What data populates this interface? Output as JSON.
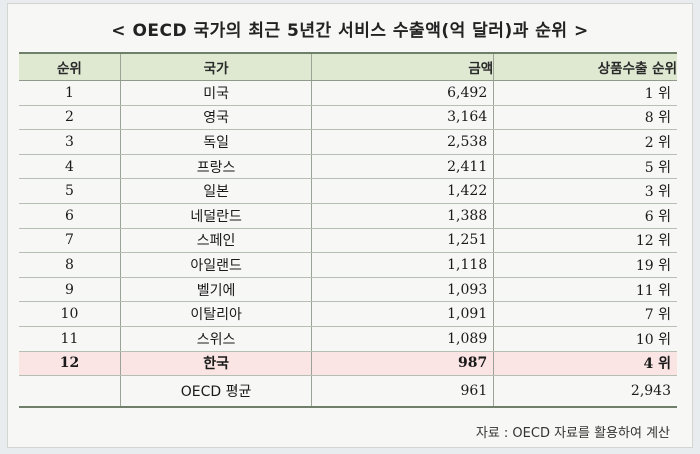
{
  "title": "< OECD 국가의 최근 5년간 서비스 수출액(억 달러)과 순위 >",
  "headers": [
    "순위",
    "국가",
    "금액",
    "상품수출 순위"
  ],
  "rows": [
    {
      "rank": "1",
      "country": "미국",
      "amount": "6,492",
      "goods_rank": "1 위"
    },
    {
      "rank": "2",
      "country": "영국",
      "amount": "3,164",
      "goods_rank": "8 위"
    },
    {
      "rank": "3",
      "country": "독일",
      "amount": "2,538",
      "goods_rank": "2 위"
    },
    {
      "rank": "4",
      "country": "프랑스",
      "amount": "2,411",
      "goods_rank": "5 위"
    },
    {
      "rank": "5",
      "country": "일본",
      "amount": "1,422",
      "goods_rank": "3 위"
    },
    {
      "rank": "6",
      "country": "네덜란드",
      "amount": "1,388",
      "goods_rank": "6 위"
    },
    {
      "rank": "7",
      "country": "스페인",
      "amount": "1,251",
      "goods_rank": "12 위"
    },
    {
      "rank": "8",
      "country": "아일랜드",
      "amount": "1,118",
      "goods_rank": "19 위"
    },
    {
      "rank": "9",
      "country": "벨기에",
      "amount": "1,093",
      "goods_rank": "11 위"
    },
    {
      "rank": "10",
      "country": "이탈리아",
      "amount": "1,091",
      "goods_rank": "7 위"
    },
    {
      "rank": "11",
      "country": "스위스",
      "amount": "1,089",
      "goods_rank": "10 위"
    },
    {
      "rank": "12",
      "country": "한국",
      "amount": "987",
      "goods_rank": "4 위"
    }
  ],
  "average_row": {
    "rank": "",
    "country": "OECD 평균",
    "amount": "961",
    "goods_rank": "2,943"
  },
  "source": "자료 : OECD 자료를 활용하여 계산",
  "colors": {
    "header_bg": "#dfe9d2",
    "highlight_bg": "#fae4e4",
    "page_bg": "#f7f8f6"
  }
}
